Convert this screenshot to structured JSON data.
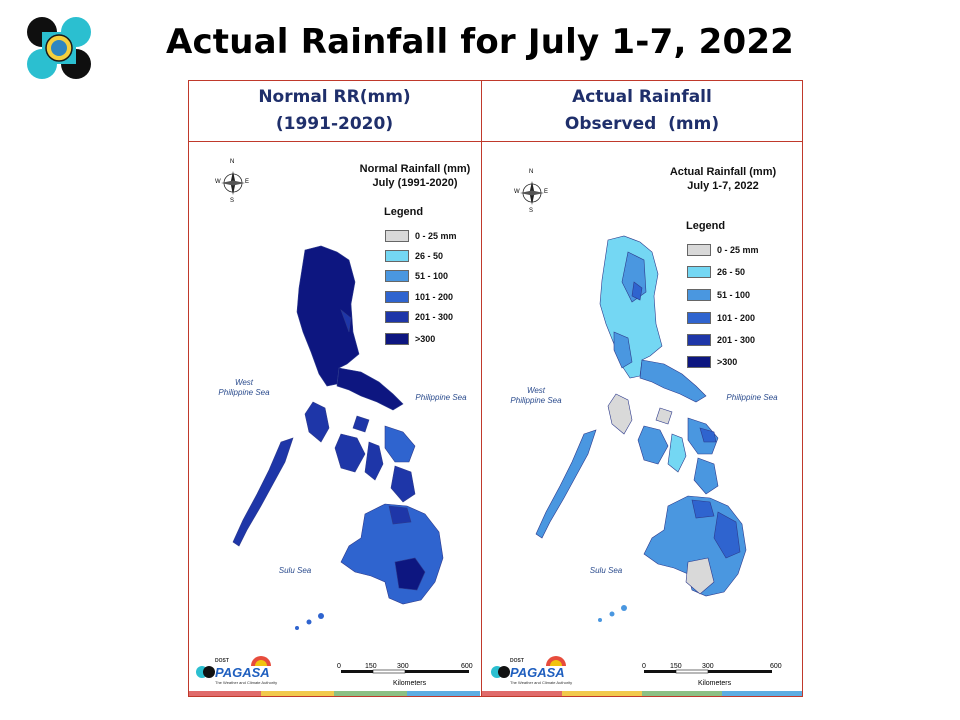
{
  "page": {
    "title": "Actual Rainfall for July 1-7, 2022"
  },
  "headers": {
    "left": [
      "Normal RR(mm)",
      "(1991-2020)"
    ],
    "right": [
      "Actual Rainfall",
      "Observed  (mm)"
    ]
  },
  "left_map": {
    "title_lines": [
      "Normal Rainfall (mm)",
      "July (1991-2020)"
    ],
    "legend_title": "Legend",
    "legend": [
      {
        "label": "0 - 25 mm",
        "color": "#d9d9d9"
      },
      {
        "label": "26 - 50",
        "color": "#74d7f3"
      },
      {
        "label": "51 - 100",
        "color": "#4a97e0"
      },
      {
        "label": "101 - 200",
        "color": "#2f64cf"
      },
      {
        "label": "201 - 300",
        "color": "#1e36a8"
      },
      {
        "label": ">300",
        "color": "#0d1680"
      }
    ],
    "sea_west": [
      "West",
      "Philippine Sea"
    ],
    "sea_east": "Philippine Sea",
    "sea_sulu": "Sulu Sea",
    "scale_ticks": [
      "0",
      "150",
      "300",
      "600"
    ],
    "scale_unit": "Kilometers",
    "compass": {
      "n": "N",
      "e": "E",
      "s": "S",
      "w": "W"
    }
  },
  "right_map": {
    "title_lines": [
      "Actual Rainfall (mm)",
      "July 1-7, 2022"
    ],
    "legend_title": "Legend",
    "legend": [
      {
        "label": "0 - 25 mm",
        "color": "#d9d9d9"
      },
      {
        "label": "26 - 50",
        "color": "#74d7f3"
      },
      {
        "label": "51 - 100",
        "color": "#4a97e0"
      },
      {
        "label": "101 - 200",
        "color": "#2f64cf"
      },
      {
        "label": "201 - 300",
        "color": "#1e36a8"
      },
      {
        "label": ">300",
        "color": "#0d1680"
      }
    ],
    "sea_west": [
      "West",
      "Philippine Sea"
    ],
    "sea_east": "Philippine Sea",
    "sea_sulu": "Sulu Sea",
    "scale_ticks": [
      "0",
      "150",
      "300",
      "600"
    ],
    "scale_unit": "Kilometers",
    "compass": {
      "n": "N",
      "e": "E",
      "s": "S",
      "w": "W"
    }
  },
  "brand": {
    "name": "PAGASA",
    "anniv": "DOST",
    "tagline": "The Weather and Climate Authority"
  },
  "colors": {
    "header_text": "#1f2f6b",
    "frame": "#c0392b",
    "strip": [
      "#e06b6b",
      "#f2c94c",
      "#8cc084",
      "#5dade2"
    ]
  }
}
